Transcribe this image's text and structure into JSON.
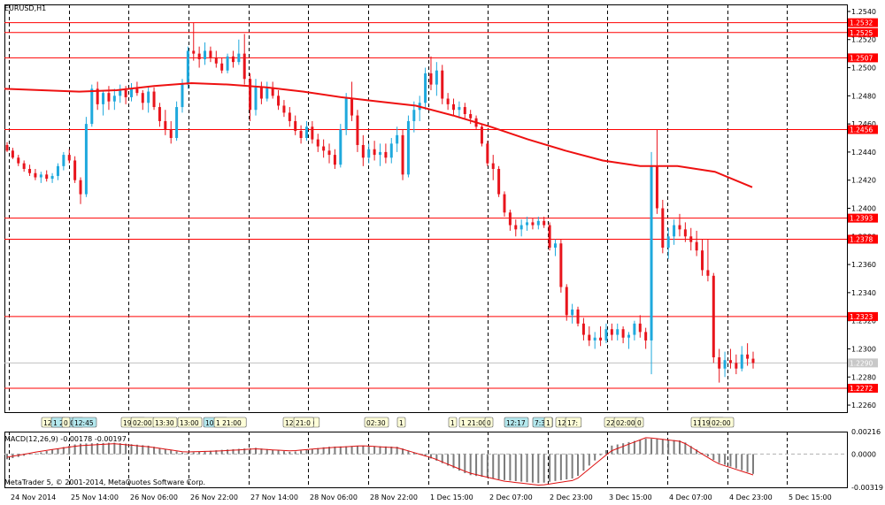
{
  "window": {
    "title": "EURUSD,H1",
    "indicator_label": "MACD(12,26,9) -0.00178 -0.00197",
    "copyright": "MetaTrader 5, © 2001-2014, MetaQuotes Software Corp."
  },
  "colors": {
    "background": "#ffffff",
    "bull_candle": "#1fa9dd",
    "bear_candle": "#e8141c",
    "levels": "#ff0000",
    "moving_average": "#ee1111",
    "grid": "#000000",
    "histogram": "#7c7c7c",
    "signal": "#dd1111",
    "current_price": "#c0c0c0",
    "trade_tag": "#ffffd8",
    "trade_tag_highlight": "#b4e8ee"
  },
  "price_axis": {
    "min": 1.2255,
    "max": 1.2545,
    "ticks": [
      "1.2540",
      "1.2520",
      "1.2500",
      "1.2480",
      "1.2460",
      "1.2440",
      "1.2420",
      "1.2400",
      "1.2380",
      "1.2360",
      "1.2340",
      "1.2320",
      "1.2300",
      "1.2280",
      "1.2260"
    ]
  },
  "levels": [
    "1.2532",
    "1.2525",
    "1.2507",
    "1.2456",
    "1.2393",
    "1.2378",
    "1.2323",
    "1.2272"
  ],
  "current_price": "1.2290",
  "macd_axis": {
    "max": 0.00216,
    "min": -0.00319,
    "ticks": [
      "0.00216",
      "0.0000",
      "-0.00319"
    ]
  },
  "time_axis": [
    "24 Nov 2014",
    "25 Nov 14:00",
    "26 Nov 06:00",
    "26 Nov 22:00",
    "27 Nov 14:00",
    "28 Nov 06:00",
    "28 Nov 22:00",
    "1 Dec 15:00",
    "2 Dec 07:00",
    "2 Dec 23:00",
    "3 Dec 15:00",
    "4 Dec 07:00",
    "4 Dec 23:00",
    "5 Dec 15:00"
  ],
  "trade_tags": [
    {
      "label": "12:00",
      "highlight": false
    },
    {
      "label": "1 20:00",
      "highlight": true
    },
    {
      "label": "0",
      "highlight": false
    },
    {
      "label": "12:45",
      "highlight": true
    },
    {
      "label": "19:00",
      "highlight": false
    },
    {
      "label": "02:00",
      "highlight": false
    },
    {
      "label": "13:30",
      "highlight": false
    },
    {
      "label": "13:00",
      "highlight": false
    },
    {
      "label": "10:15",
      "highlight": true
    },
    {
      "label": "1 21:00",
      "highlight": false
    },
    {
      "label": "12 15:30",
      "highlight": false
    },
    {
      "label": "21:0",
      "highlight": false
    },
    {
      "label": "02:30",
      "highlight": false
    },
    {
      "label": "1",
      "highlight": false
    },
    {
      "label": "1",
      "highlight": false
    },
    {
      "label": "1 21:00",
      "highlight": false
    },
    {
      "label": "0",
      "highlight": false
    },
    {
      "label": "12:17",
      "highlight": true
    },
    {
      "label": "7:30",
      "highlight": true
    },
    {
      "label": "1",
      "highlight": false
    },
    {
      "label": "12",
      "highlight": false
    },
    {
      "label": "17:",
      "highlight": false
    },
    {
      "label": "22",
      "highlight": false
    },
    {
      "label": "02:00",
      "highlight": false
    },
    {
      "label": "0",
      "highlight": false
    },
    {
      "label": "11:30",
      "highlight": false
    },
    {
      "label": "19:30",
      "highlight": false
    },
    {
      "label": "02:00",
      "highlight": false
    }
  ],
  "moving_average": [
    1.2485,
    1.2484,
    1.2483,
    1.2484,
    1.2487,
    1.2489,
    1.2488,
    1.2486,
    1.2483,
    1.2479,
    1.2476,
    1.2473,
    1.2466,
    1.2458,
    1.2449,
    1.2441,
    1.2434,
    1.243,
    1.243,
    1.2426,
    1.2415
  ],
  "macd_hist_ends": [
    -0.0005,
    0.0002,
    0.001,
    0.0011,
    0.0008,
    0.0001,
    0.0004,
    0.0006,
    0.0002,
    0.0007,
    0.0008,
    0.0007,
    -0.0005,
    -0.002,
    -0.0025,
    -0.0028,
    -0.0023,
    0.0008,
    0.0015,
    0.0013,
    -0.0008,
    -0.0019
  ],
  "macd_signal_ends": [
    -0.0003,
    0.0003,
    0.0008,
    0.001,
    0.0007,
    0.0002,
    0.0003,
    0.0005,
    0.0003,
    0.0006,
    0.0008,
    0.0006,
    -0.0004,
    -0.0018,
    -0.0026,
    -0.003,
    -0.0025,
    0.0003,
    0.0016,
    0.0012,
    -0.0009,
    -0.002
  ],
  "candles": [
    [
      1.2445,
      1.2447,
      1.244,
      1.2441
    ],
    [
      1.2441,
      1.2443,
      1.2435,
      1.2436
    ],
    [
      1.2436,
      1.2438,
      1.243,
      1.2432
    ],
    [
      1.2432,
      1.2434,
      1.2426,
      1.2428
    ],
    [
      1.2428,
      1.2431,
      1.2423,
      1.2425
    ],
    [
      1.2425,
      1.2428,
      1.242,
      1.2422
    ],
    [
      1.2422,
      1.2426,
      1.2418,
      1.2424
    ],
    [
      1.2424,
      1.2427,
      1.2419,
      1.2421
    ],
    [
      1.2421,
      1.2425,
      1.2418,
      1.2423
    ],
    [
      1.2423,
      1.2432,
      1.242,
      1.243
    ],
    [
      1.243,
      1.244,
      1.2427,
      1.2438
    ],
    [
      1.2438,
      1.2442,
      1.2432,
      1.2434
    ],
    [
      1.2434,
      1.2437,
      1.2418,
      1.242
    ],
    [
      1.242,
      1.2422,
      1.2403,
      1.241
    ],
    [
      1.241,
      1.2465,
      1.2408,
      1.246
    ],
    [
      1.246,
      1.2488,
      1.2458,
      1.2485
    ],
    [
      1.2485,
      1.249,
      1.247,
      1.2474
    ],
    [
      1.2474,
      1.2484,
      1.2466,
      1.2482
    ],
    [
      1.2482,
      1.2487,
      1.247,
      1.2476
    ],
    [
      1.2476,
      1.2485,
      1.247,
      1.248
    ],
    [
      1.248,
      1.2488,
      1.2475,
      1.2484
    ],
    [
      1.2484,
      1.2487,
      1.2474,
      1.2479
    ],
    [
      1.2479,
      1.2489,
      1.2476,
      1.2485
    ],
    [
      1.2485,
      1.249,
      1.248,
      1.2482
    ],
    [
      1.2482,
      1.2484,
      1.247,
      1.2475
    ],
    [
      1.2475,
      1.2486,
      1.2468,
      1.2483
    ],
    [
      1.2483,
      1.2486,
      1.247,
      1.2472
    ],
    [
      1.2472,
      1.2475,
      1.2458,
      1.2462
    ],
    [
      1.2462,
      1.247,
      1.2452,
      1.2456
    ],
    [
      1.2456,
      1.2462,
      1.2446,
      1.245
    ],
    [
      1.245,
      1.2476,
      1.2448,
      1.2472
    ],
    [
      1.2472,
      1.2492,
      1.2468,
      1.2488
    ],
    [
      1.2488,
      1.2515,
      1.2485,
      1.2512
    ],
    [
      1.2512,
      1.2532,
      1.2505,
      1.251
    ],
    [
      1.251,
      1.2515,
      1.25,
      1.2506
    ],
    [
      1.2506,
      1.2518,
      1.2502,
      1.2512
    ],
    [
      1.2512,
      1.2515,
      1.2504,
      1.2507
    ],
    [
      1.2507,
      1.2512,
      1.25,
      1.2503
    ],
    [
      1.2503,
      1.2507,
      1.2496,
      1.2498
    ],
    [
      1.2498,
      1.251,
      1.2496,
      1.2508
    ],
    [
      1.2508,
      1.2512,
      1.25,
      1.2504
    ],
    [
      1.2504,
      1.252,
      1.2502,
      1.251
    ],
    [
      1.251,
      1.2524,
      1.2488,
      1.2492
    ],
    [
      1.2492,
      1.2496,
      1.2462,
      1.247
    ],
    [
      1.247,
      1.2492,
      1.2466,
      1.2486
    ],
    [
      1.2486,
      1.249,
      1.2474,
      1.2478
    ],
    [
      1.2478,
      1.249,
      1.2476,
      1.2486
    ],
    [
      1.2486,
      1.249,
      1.2478,
      1.248
    ],
    [
      1.248,
      1.2484,
      1.247,
      1.2473
    ],
    [
      1.2473,
      1.2477,
      1.2465,
      1.2468
    ],
    [
      1.2468,
      1.2472,
      1.2458,
      1.2462
    ],
    [
      1.2462,
      1.2466,
      1.2452,
      1.2455
    ],
    [
      1.2455,
      1.2459,
      1.2446,
      1.245
    ],
    [
      1.245,
      1.2462,
      1.2448,
      1.2458
    ],
    [
      1.2458,
      1.2462,
      1.2446,
      1.2449
    ],
    [
      1.2449,
      1.2453,
      1.244,
      1.2444
    ],
    [
      1.2444,
      1.2449,
      1.2436,
      1.2441
    ],
    [
      1.2441,
      1.2446,
      1.2432,
      1.2438
    ],
    [
      1.2438,
      1.2442,
      1.2428,
      1.2431
    ],
    [
      1.2431,
      1.246,
      1.2429,
      1.2456
    ],
    [
      1.2456,
      1.2482,
      1.2452,
      1.2478
    ],
    [
      1.2478,
      1.249,
      1.2462,
      1.2466
    ],
    [
      1.2466,
      1.247,
      1.244,
      1.2445
    ],
    [
      1.2445,
      1.2452,
      1.243,
      1.2436
    ],
    [
      1.2436,
      1.2446,
      1.2432,
      1.2442
    ],
    [
      1.2442,
      1.2448,
      1.2434,
      1.2438
    ],
    [
      1.2438,
      1.2446,
      1.243,
      1.244
    ],
    [
      1.244,
      1.2446,
      1.2432,
      1.2436
    ],
    [
      1.2436,
      1.245,
      1.2432,
      1.2446
    ],
    [
      1.2446,
      1.2458,
      1.244,
      1.2452
    ],
    [
      1.2452,
      1.2456,
      1.242,
      1.2424
    ],
    [
      1.2424,
      1.2466,
      1.2422,
      1.2462
    ],
    [
      1.2462,
      1.2476,
      1.2454,
      1.247
    ],
    [
      1.247,
      1.248,
      1.2462,
      1.2475
    ],
    [
      1.2475,
      1.25,
      1.247,
      1.2496
    ],
    [
      1.2496,
      1.2508,
      1.2484,
      1.2488
    ],
    [
      1.2488,
      1.2504,
      1.248,
      1.2498
    ],
    [
      1.2498,
      1.2502,
      1.2474,
      1.2478
    ],
    [
      1.2478,
      1.2482,
      1.247,
      1.2474
    ],
    [
      1.2474,
      1.2478,
      1.2466,
      1.247
    ],
    [
      1.247,
      1.2476,
      1.2464,
      1.2472
    ],
    [
      1.2472,
      1.2475,
      1.2464,
      1.2467
    ],
    [
      1.2467,
      1.247,
      1.246,
      1.2464
    ],
    [
      1.2464,
      1.2466,
      1.2456,
      1.2458
    ],
    [
      1.2458,
      1.246,
      1.2444,
      1.2446
    ],
    [
      1.2446,
      1.2448,
      1.243,
      1.2432
    ],
    [
      1.2432,
      1.2438,
      1.242,
      1.2428
    ],
    [
      1.2428,
      1.243,
      1.2408,
      1.241
    ],
    [
      1.241,
      1.2412,
      1.2394,
      1.2397
    ],
    [
      1.2397,
      1.2399,
      1.2384,
      1.2388
    ],
    [
      1.2388,
      1.2392,
      1.238,
      1.2385
    ],
    [
      1.2385,
      1.2392,
      1.238,
      1.2388
    ],
    [
      1.2388,
      1.2394,
      1.2384,
      1.239
    ],
    [
      1.239,
      1.2393,
      1.2385,
      1.2388
    ],
    [
      1.2388,
      1.2394,
      1.2385,
      1.2391
    ],
    [
      1.2391,
      1.2394,
      1.2386,
      1.2388
    ],
    [
      1.2388,
      1.239,
      1.237,
      1.2372
    ],
    [
      1.2372,
      1.2378,
      1.2366,
      1.2375
    ],
    [
      1.2375,
      1.2378,
      1.234,
      1.2344
    ],
    [
      1.2344,
      1.2346,
      1.232,
      1.2324
    ],
    [
      1.2324,
      1.2332,
      1.2318,
      1.2328
    ],
    [
      1.2328,
      1.233,
      1.2316,
      1.2318
    ],
    [
      1.2318,
      1.2322,
      1.2306,
      1.231
    ],
    [
      1.231,
      1.2316,
      1.2302,
      1.2306
    ],
    [
      1.2306,
      1.2312,
      1.23,
      1.2308
    ],
    [
      1.2308,
      1.2316,
      1.2302,
      1.2306
    ],
    [
      1.2306,
      1.2318,
      1.2304,
      1.2314
    ],
    [
      1.2314,
      1.2318,
      1.2306,
      1.231
    ],
    [
      1.231,
      1.2318,
      1.2306,
      1.2314
    ],
    [
      1.2314,
      1.2316,
      1.2304,
      1.2308
    ],
    [
      1.2308,
      1.2312,
      1.23,
      1.231
    ],
    [
      1.231,
      1.232,
      1.2306,
      1.2318
    ],
    [
      1.2318,
      1.2324,
      1.2308,
      1.2312
    ],
    [
      1.2312,
      1.2315,
      1.23,
      1.2306
    ],
    [
      1.2306,
      1.244,
      1.2282,
      1.243
    ],
    [
      1.243,
      1.2456,
      1.2396,
      1.24
    ],
    [
      1.24,
      1.2406,
      1.2368,
      1.2372
    ],
    [
      1.2372,
      1.2386,
      1.2364,
      1.238
    ],
    [
      1.238,
      1.2392,
      1.2374,
      1.2388
    ],
    [
      1.2388,
      1.2396,
      1.238,
      1.2385
    ],
    [
      1.2385,
      1.239,
      1.2376,
      1.238
    ],
    [
      1.238,
      1.2386,
      1.237,
      1.2376
    ],
    [
      1.2376,
      1.2384,
      1.2366,
      1.237
    ],
    [
      1.237,
      1.2378,
      1.2352,
      1.2356
    ],
    [
      1.2356,
      1.2378,
      1.2348,
      1.2352
    ],
    [
      1.2352,
      1.2354,
      1.229,
      1.2294
    ],
    [
      1.2294,
      1.23,
      1.2276,
      1.2286
    ],
    [
      1.2286,
      1.2298,
      1.228,
      1.2292
    ],
    [
      1.2292,
      1.23,
      1.2286,
      1.229
    ],
    [
      1.229,
      1.2296,
      1.2282,
      1.2286
    ],
    [
      1.2286,
      1.2302,
      1.2284,
      1.2296
    ],
    [
      1.2296,
      1.2304,
      1.2288,
      1.2293
    ],
    [
      1.2293,
      1.2298,
      1.2286,
      1.229
    ]
  ]
}
